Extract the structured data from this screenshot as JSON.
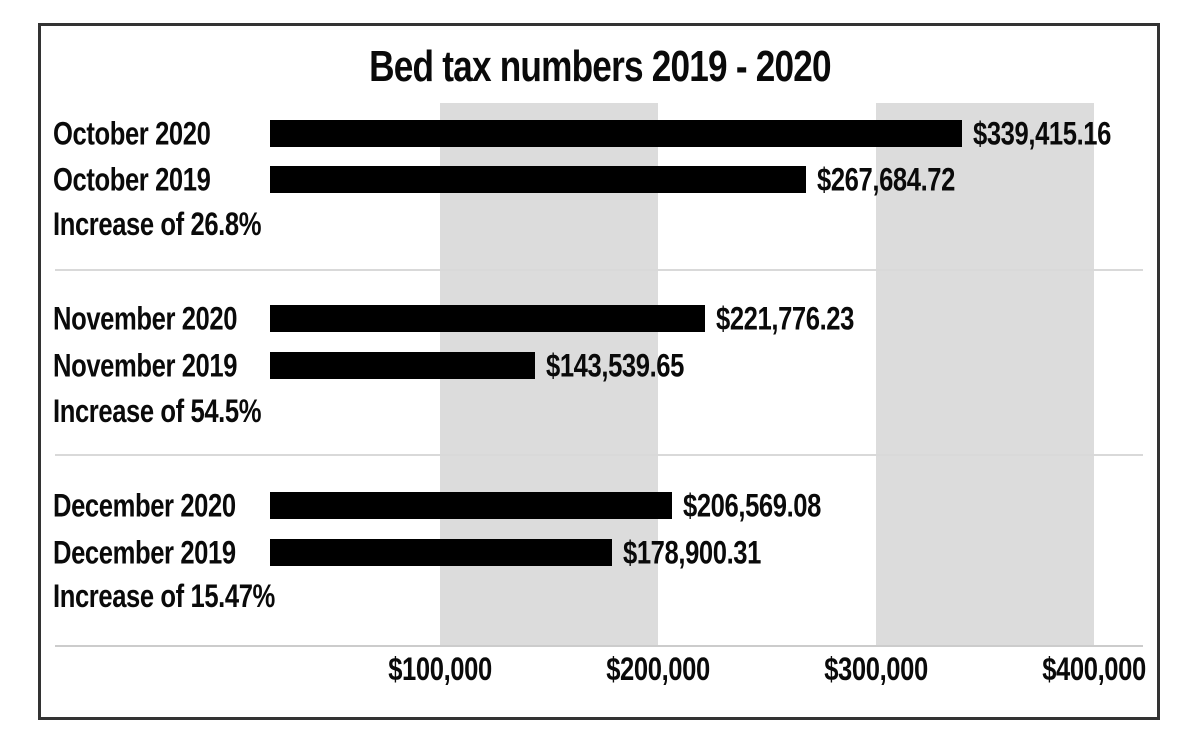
{
  "title": "Bed tax numbers 2019 - 2020",
  "chart_data": {
    "type": "bar",
    "orientation": "horizontal",
    "title": "Bed tax numbers 2019 - 2020",
    "grid": "vertical-bands",
    "legend": null,
    "x_axis": {
      "range": [
        0,
        400000
      ],
      "ticks": [
        {
          "value": 100000,
          "label": "$100,000"
        },
        {
          "value": 200000,
          "label": "$200,000"
        },
        {
          "value": 300000,
          "label": "$300,000"
        },
        {
          "value": 400000,
          "label": "$400,000"
        }
      ]
    },
    "bands": [
      {
        "from": 100000,
        "to": 200000
      },
      {
        "from": 300000,
        "to": 400000
      }
    ],
    "groups": [
      {
        "rows": [
          {
            "label": "October 2020",
            "value": 339415.16,
            "value_label": "$339,415.16"
          },
          {
            "label": "October 2019",
            "value": 267684.72,
            "value_label": "$267,684.72"
          }
        ],
        "note": "Increase of 26.8%"
      },
      {
        "rows": [
          {
            "label": "November 2020",
            "value": 221776.23,
            "value_label": "$221,776.23"
          },
          {
            "label": "November 2019",
            "value": 143539.65,
            "value_label": "$143,539.65"
          }
        ],
        "note": "Increase of 54.5%"
      },
      {
        "rows": [
          {
            "label": "December 2020",
            "value": 206569.08,
            "value_label": "$206,569.08"
          },
          {
            "label": "December 2019",
            "value": 178900.31,
            "value_label": "$178,900.31"
          }
        ],
        "note": "Increase of 15.47%"
      }
    ],
    "colors": {
      "bar": "#000000",
      "band": "#dcdcdc",
      "separator": "#d9d9d9",
      "axis_line": "#cccccc",
      "frame_border": "#333333",
      "text": "#0a0a0a"
    }
  }
}
